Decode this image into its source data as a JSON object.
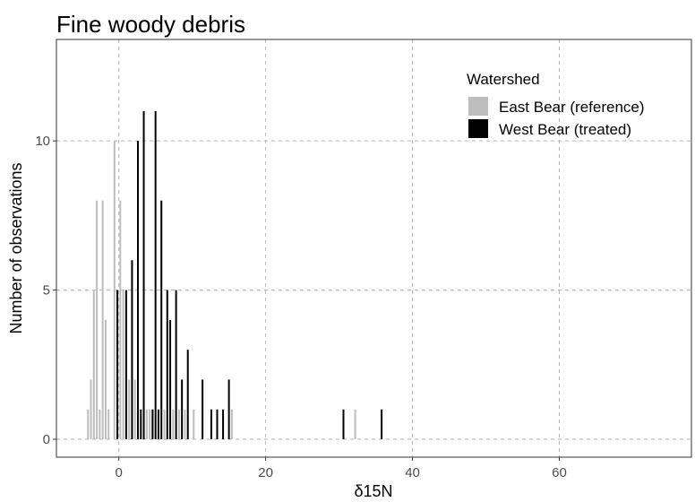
{
  "chart_data": {
    "type": "bar",
    "title": "Fine woody debris",
    "xlabel": "δ15N",
    "ylabel": "Number of observations",
    "xlim": [
      -8.5,
      78
    ],
    "ylim": [
      -0.6,
      13.4
    ],
    "x_ticks": [
      0,
      20,
      40,
      60
    ],
    "y_ticks": [
      0,
      5,
      10
    ],
    "grid": true,
    "legend": {
      "title": "Watershed",
      "placement": "top-right"
    },
    "series": [
      {
        "name": "East Bear (reference)",
        "color": "#bdbdbd",
        "x": [
          -4.2,
          -3.8,
          -3.4,
          -3.0,
          -2.6,
          -2.2,
          -1.8,
          -1.4,
          -0.6,
          -0.2,
          0.2,
          0.6,
          1.4,
          1.8,
          2.2,
          3.4,
          3.8,
          4.2,
          4.6,
          5.4,
          6.2,
          7.0,
          7.4,
          8.2,
          9.0,
          10.2,
          12.6,
          15.4,
          32.2
        ],
        "values": [
          1,
          2,
          5,
          8,
          1,
          8,
          4,
          1,
          10,
          5,
          8,
          5,
          2,
          2,
          2,
          1,
          1,
          1,
          1,
          1,
          1,
          2,
          1,
          1,
          1,
          1,
          1,
          1,
          1
        ]
      },
      {
        "name": "West Bear (treated)",
        "color": "#000000",
        "x": [
          -0.2,
          1.0,
          1.8,
          2.6,
          3.0,
          3.4,
          4.6,
          5.0,
          5.4,
          5.8,
          6.6,
          7.0,
          7.8,
          8.6,
          9.4,
          11.4,
          12.6,
          13.4,
          14.2,
          15.0,
          30.6,
          35.8
        ],
        "values": [
          5,
          5,
          6,
          10,
          1,
          11,
          1,
          11,
          1,
          8,
          5,
          4,
          5,
          2,
          3,
          2,
          1,
          1,
          1,
          2,
          1,
          1
        ]
      }
    ]
  }
}
